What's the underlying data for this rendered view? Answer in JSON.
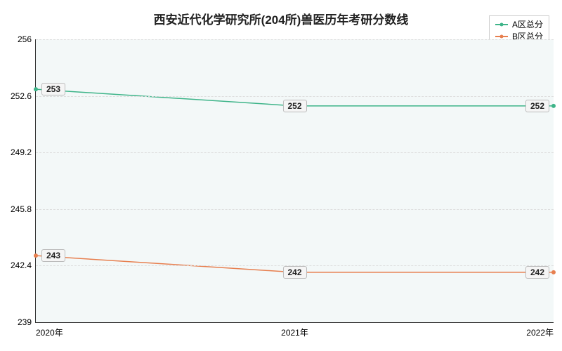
{
  "chart": {
    "type": "line",
    "title": "西安近代化学研究所(204所)兽医历年考研分数线",
    "title_fontsize": 17,
    "title_color": "#222222",
    "background_color": "#ffffff",
    "plot_background": "#f3f8f8",
    "grid_color": "#dddddd",
    "axis_color": "#333333",
    "label_fontsize": 12,
    "tick_fontsize": 12,
    "x": {
      "categories": [
        "2020年",
        "2021年",
        "2022年"
      ],
      "positions_pct": [
        0,
        50,
        100
      ]
    },
    "y": {
      "min": 239,
      "max": 256,
      "ticks": [
        239,
        242.4,
        245.8,
        249.2,
        252.6,
        256
      ],
      "tick_labels": [
        "239",
        "242.4",
        "245.8",
        "249.2",
        "252.6",
        "256"
      ]
    },
    "series": [
      {
        "name": "A区总分",
        "color": "#3eb489",
        "line_width": 1.5,
        "marker": "circle",
        "marker_size": 4,
        "values": [
          253,
          252,
          252
        ],
        "labels": [
          "253",
          "252",
          "252"
        ]
      },
      {
        "name": "B区总分",
        "color": "#e77f4f",
        "line_width": 1.5,
        "marker": "circle",
        "marker_size": 4,
        "values": [
          243,
          242,
          242
        ],
        "labels": [
          "243",
          "242",
          "242"
        ]
      }
    ],
    "legend": {
      "position": "top-right",
      "fontsize": 12,
      "border_color": "#cccccc"
    },
    "data_label": {
      "fontsize": 12,
      "background": "#f5f5f5",
      "border_color": "#bbbbbb",
      "text_color": "#222222"
    }
  }
}
